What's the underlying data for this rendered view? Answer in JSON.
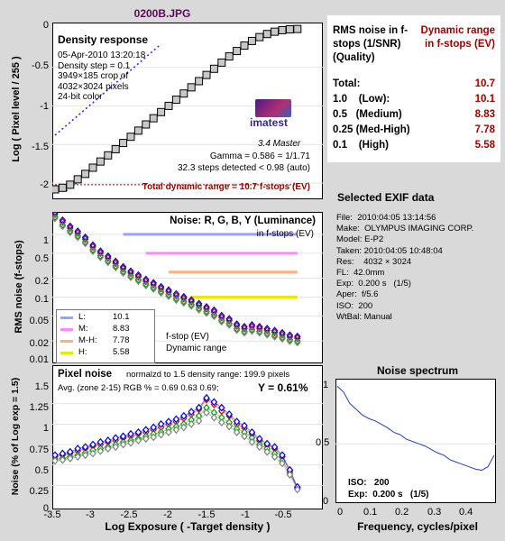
{
  "title": "0200B.JPG",
  "density": {
    "heading": "Density response",
    "info": [
      "05-Apr-2010 13:20:18",
      "Density step = 0.1",
      "3949×185 crop of",
      "4032×3024 pixels",
      "24-bit color"
    ],
    "logo": "imatest",
    "logo_sub": "3.4  Master",
    "gamma": "Gamma = 0.586 = 1/1.71",
    "steps": "32.3 steps detected < 0.98 (auto)",
    "total_dr": "Total dynamic range = 10.7 f-stops (EV)",
    "ylabel": "Log ( Pixel level / 255 )",
    "yticks": [
      "0",
      "-0.5",
      "-1",
      "-1.5",
      "-2"
    ]
  },
  "noise": {
    "heading": "Noise: R, G, B, Y (Luminance)",
    "subheading": "in f-stops (EV)",
    "ylabel": "RMS noise (f-stops)",
    "yticks": [
      "1",
      "0.5",
      "0.2",
      "0.1",
      "0.05",
      "0.02",
      "0.01"
    ],
    "legend": [
      {
        "label": "L:",
        "value": "10.1",
        "color": "#9aa0ff"
      },
      {
        "label": "M:",
        "value": "8.83",
        "color": "#ff88ff"
      },
      {
        "label": "M-H:",
        "value": "7.78",
        "color": "#ffb080"
      },
      {
        "label": "H:",
        "value": "5.58",
        "color": "#e8e800"
      }
    ],
    "fstop_label": "f-stop (EV)",
    "dr_label": "Dynamic range"
  },
  "pixel": {
    "heading": "Pixel noise",
    "norm": "normalzd to 1.5 density range: 199.9 pixels",
    "avg": "Avg. (zone 2-15) RGB % = 0.69  0.63  0.69;",
    "y": "Y = 0.61%",
    "ylabel": "Noise (% of Log exp = 1.5)",
    "yticks": [
      "1.5",
      "1.25",
      "1",
      "0.75",
      "0.5",
      "0.25",
      "0"
    ],
    "xlabel": "Log Exposure ( -Target density )",
    "xticks": [
      "-3.5",
      "-3",
      "-2.5",
      "-2",
      "-1.5",
      "-1",
      "-0.5"
    ]
  },
  "summary": {
    "head_left": "RMS noise in f-stops (1/SNR) (Quality)",
    "head_right": "Dynamic range in f-stops (EV)",
    "rows": [
      {
        "label": "Total:",
        "value": "10.7"
      },
      {
        "label": "1.0    (Low):",
        "value": "10.1"
      },
      {
        "label": "0.5   (Medium)",
        "value": "8.83"
      },
      {
        "label": "0.25 (Med-High)",
        "value": "7.78"
      },
      {
        "label": "0.1    (High)",
        "value": "5.58"
      }
    ]
  },
  "exif": {
    "title": "Selected EXIF data",
    "lines": [
      "File:  2010:04:05 13:14:56",
      "Make:  OLYMPUS IMAGING CORP.",
      "Model: E-P2",
      "Taken: 2010:04:05 10:48:04",
      "Res:    4032 × 3024",
      "FL:  42.0mm",
      "Exp:  0.200 s   (1/5)",
      "Aper:  f/5.6",
      "ISO:  200",
      "WtBal: Manual"
    ]
  },
  "spectrum": {
    "title": "Noise spectrum",
    "xlabel": "Frequency, cycles/pixel",
    "xticks": [
      "0",
      "0.1",
      "0.2",
      "0.3",
      "0.4"
    ],
    "yticks": [
      "1",
      "0.5",
      "0"
    ],
    "iso": "ISO:   200",
    "exp": "Exp:  0.200 s   (1/5)"
  },
  "chart_data": [
    {
      "type": "scatter",
      "name": "Density response",
      "x": [
        -3.5,
        -3.4,
        -3.3,
        -3.2,
        -3.1,
        -3.0,
        -2.9,
        -2.8,
        -2.7,
        -2.6,
        -2.5,
        -2.4,
        -2.3,
        -2.2,
        -2.1,
        -2.0,
        -1.9,
        -1.8,
        -1.7,
        -1.6,
        -1.5,
        -1.4,
        -1.3,
        -1.2,
        -1.1,
        -1.0,
        -0.9,
        -0.8,
        -0.7,
        -0.6,
        -0.5,
        -0.4,
        -0.3
      ],
      "y": [
        -2.08,
        -2.06,
        -2.02,
        -1.95,
        -1.88,
        -1.8,
        -1.72,
        -1.64,
        -1.56,
        -1.48,
        -1.4,
        -1.32,
        -1.24,
        -1.16,
        -1.08,
        -1.0,
        -0.92,
        -0.84,
        -0.76,
        -0.68,
        -0.6,
        -0.52,
        -0.44,
        -0.36,
        -0.29,
        -0.22,
        -0.16,
        -0.11,
        -0.07,
        -0.04,
        -0.02,
        -0.01,
        -0.005
      ],
      "ylim": [
        -2.15,
        0.02
      ],
      "xlim": [
        -3.5,
        0
      ]
    },
    {
      "type": "scatter",
      "name": "RMS noise (f-stops)",
      "scale": "log",
      "x": [
        -3.5,
        -3.4,
        -3.3,
        -3.2,
        -3.1,
        -3.0,
        -2.9,
        -2.8,
        -2.7,
        -2.6,
        -2.5,
        -2.4,
        -2.3,
        -2.2,
        -2.1,
        -2.0,
        -1.9,
        -1.8,
        -1.7,
        -1.6,
        -1.5,
        -1.4,
        -1.3,
        -1.2,
        -1.1,
        -1.0,
        -0.9,
        -0.8,
        -0.7,
        -0.6,
        -0.5,
        -0.4,
        -0.3
      ],
      "y": [
        2.0,
        1.5,
        1.2,
        1.0,
        0.8,
        0.6,
        0.48,
        0.4,
        0.33,
        0.27,
        0.23,
        0.2,
        0.17,
        0.15,
        0.13,
        0.115,
        0.1,
        0.09,
        0.08,
        0.07,
        0.062,
        0.055,
        0.045,
        0.04,
        0.033,
        0.03,
        0.032,
        0.03,
        0.028,
        0.026,
        0.024,
        0.022,
        0.021
      ],
      "levels": [
        1.0,
        0.5,
        0.25,
        0.1
      ],
      "ylim": [
        0.01,
        2
      ],
      "xlim": [
        -3.5,
        0
      ]
    },
    {
      "type": "scatter",
      "name": "Pixel noise",
      "x": [
        -3.5,
        -3.4,
        -3.3,
        -3.2,
        -3.1,
        -3.0,
        -2.9,
        -2.8,
        -2.7,
        -2.6,
        -2.5,
        -2.4,
        -2.3,
        -2.2,
        -2.1,
        -2.0,
        -1.9,
        -1.8,
        -1.7,
        -1.6,
        -1.5,
        -1.4,
        -1.3,
        -1.2,
        -1.1,
        -1.0,
        -0.9,
        -0.8,
        -0.7,
        -0.6,
        -0.5,
        -0.4,
        -0.3
      ],
      "series": [
        {
          "name": "R",
          "color": "#e00000",
          "values": [
            0.6,
            0.62,
            0.64,
            0.67,
            0.7,
            0.73,
            0.75,
            0.78,
            0.8,
            0.83,
            0.85,
            0.88,
            0.9,
            0.93,
            0.96,
            1.0,
            1.03,
            1.07,
            1.12,
            1.18,
            1.3,
            1.24,
            1.16,
            1.1,
            1.0,
            0.95,
            0.88,
            0.8,
            0.74,
            0.7,
            0.6,
            0.42,
            0.22
          ]
        },
        {
          "name": "G",
          "color": "#00a000",
          "values": [
            0.57,
            0.58,
            0.6,
            0.62,
            0.65,
            0.68,
            0.7,
            0.72,
            0.75,
            0.78,
            0.8,
            0.82,
            0.85,
            0.88,
            0.9,
            0.94,
            0.97,
            1.0,
            1.05,
            1.1,
            1.2,
            1.14,
            1.08,
            1.02,
            0.94,
            0.9,
            0.83,
            0.75,
            0.7,
            0.64,
            0.55,
            0.4,
            0.21
          ]
        },
        {
          "name": "B",
          "color": "#0000e0",
          "values": [
            0.62,
            0.64,
            0.66,
            0.7,
            0.72,
            0.75,
            0.78,
            0.8,
            0.83,
            0.85,
            0.88,
            0.9,
            0.93,
            0.96,
            1.0,
            1.03,
            1.06,
            1.1,
            1.15,
            1.2,
            1.32,
            1.27,
            1.2,
            1.12,
            1.03,
            0.98,
            0.9,
            0.82,
            0.76,
            0.72,
            0.62,
            0.44,
            0.23
          ]
        },
        {
          "name": "Y",
          "color": "#808080",
          "values": [
            0.55,
            0.56,
            0.58,
            0.6,
            0.62,
            0.64,
            0.67,
            0.7,
            0.72,
            0.75,
            0.77,
            0.8,
            0.82,
            0.84,
            0.87,
            0.9,
            0.93,
            0.96,
            1.0,
            1.04,
            1.14,
            1.08,
            1.02,
            0.97,
            0.9,
            0.85,
            0.78,
            0.72,
            0.66,
            0.6,
            0.52,
            0.38,
            0.2
          ]
        }
      ],
      "ylim": [
        0,
        1.5
      ],
      "xlim": [
        -3.5,
        0
      ]
    },
    {
      "type": "line",
      "name": "Noise spectrum",
      "x": [
        0,
        0.02,
        0.04,
        0.06,
        0.08,
        0.1,
        0.12,
        0.14,
        0.16,
        0.18,
        0.2,
        0.22,
        0.24,
        0.26,
        0.28,
        0.3,
        0.32,
        0.34,
        0.36,
        0.38,
        0.4,
        0.42,
        0.44,
        0.46,
        0.48,
        0.5
      ],
      "y": [
        1.0,
        0.95,
        0.85,
        0.8,
        0.75,
        0.72,
        0.7,
        0.67,
        0.64,
        0.6,
        0.58,
        0.54,
        0.52,
        0.5,
        0.48,
        0.45,
        0.42,
        0.4,
        0.36,
        0.34,
        0.32,
        0.3,
        0.28,
        0.27,
        0.3,
        0.4
      ],
      "ylim": [
        0,
        1.05
      ],
      "xlim": [
        0,
        0.5
      ]
    }
  ]
}
